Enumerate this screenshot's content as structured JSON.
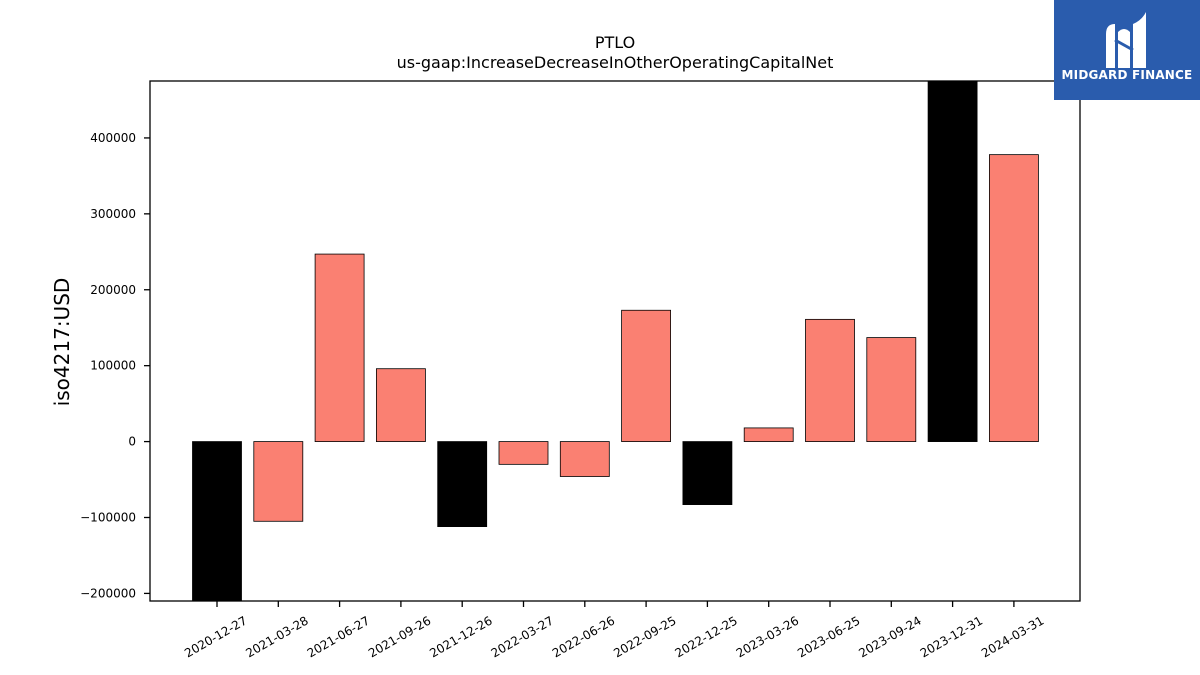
{
  "chart_data": {
    "type": "bar",
    "title": "PTLO",
    "subtitle": "us-gaap:IncreaseDecreaseInOtherOperatingCapitalNet",
    "xlabel": "",
    "ylabel": "iso4217:USD",
    "ylim": [
      -210000,
      475000
    ],
    "yticks": [
      -200000,
      -100000,
      0,
      100000,
      200000,
      300000,
      400000
    ],
    "ytick_labels": [
      "−200000",
      "−100000",
      "0",
      "100000",
      "200000",
      "300000",
      "400000"
    ],
    "categories": [
      "2020-12-27",
      "2021-03-28",
      "2021-06-27",
      "2021-09-26",
      "2021-12-26",
      "2022-03-27",
      "2022-06-26",
      "2022-09-25",
      "2022-12-25",
      "2023-03-26",
      "2023-06-25",
      "2023-09-24",
      "2023-12-31",
      "2024-03-31"
    ],
    "values": [
      -210000,
      -105000,
      247000,
      96000,
      -112000,
      -30000,
      -46000,
      173000,
      -83000,
      18000,
      161000,
      137000,
      475000,
      378000
    ],
    "bar_colors": [
      "#000000",
      "#fa8072",
      "#fa8072",
      "#fa8072",
      "#000000",
      "#fa8072",
      "#fa8072",
      "#fa8072",
      "#000000",
      "#fa8072",
      "#fa8072",
      "#fa8072",
      "#000000",
      "#fa8072"
    ],
    "grid": false,
    "legend": "none"
  },
  "logo": {
    "text": "MIDGARD FINANCE",
    "icon": "midgard-logo-icon",
    "background": "#2a5cad"
  }
}
